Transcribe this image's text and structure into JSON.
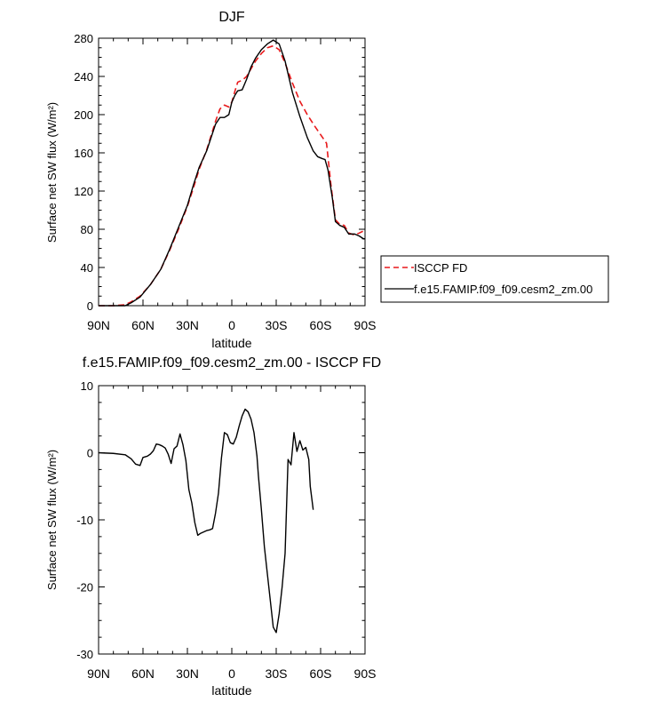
{
  "chart_data": [
    {
      "type": "line",
      "title": "DJF",
      "xlabel": "latitude",
      "ylabel": "Surface net SW flux (W/m²)",
      "ylim": [
        0,
        280
      ],
      "xlim": [
        -90,
        90
      ],
      "x_ticks": [
        {
          "v": -90,
          "label": "90N"
        },
        {
          "v": -60,
          "label": "60N"
        },
        {
          "v": -30,
          "label": "30N"
        },
        {
          "v": 0,
          "label": "0"
        },
        {
          "v": 30,
          "label": "30S"
        },
        {
          "v": 60,
          "label": "60S"
        },
        {
          "v": 90,
          "label": "90S"
        }
      ],
      "y_ticks": [
        0,
        40,
        80,
        120,
        160,
        200,
        240,
        280
      ],
      "legend_position": "right",
      "series": [
        {
          "name": "ISCCP FD",
          "color": "#e8191b",
          "dash": "dashed",
          "points": [
            [
              -90,
              0
            ],
            [
              -80,
              0
            ],
            [
              -72,
              1
            ],
            [
              -68,
              4
            ],
            [
              -62,
              10
            ],
            [
              -55,
              22
            ],
            [
              -48,
              38
            ],
            [
              -42,
              58
            ],
            [
              -36,
              80
            ],
            [
              -30,
              104
            ],
            [
              -26,
              123
            ],
            [
              -22,
              143
            ],
            [
              -17,
              163
            ],
            [
              -14,
              178
            ],
            [
              -11,
              193
            ],
            [
              -8,
              206
            ],
            [
              -5,
              210
            ],
            [
              -2,
              208
            ],
            [
              0,
              213
            ],
            [
              2,
              224
            ],
            [
              4,
              234
            ],
            [
              7,
              236
            ],
            [
              10,
              240
            ],
            [
              13,
              248
            ],
            [
              16,
              256
            ],
            [
              20,
              264
            ],
            [
              24,
              270
            ],
            [
              28,
              272
            ],
            [
              32,
              268
            ],
            [
              36,
              254
            ],
            [
              41,
              233
            ],
            [
              46,
              214
            ],
            [
              51,
              200
            ],
            [
              56,
              188
            ],
            [
              60,
              179
            ],
            [
              64,
              170
            ],
            [
              67,
              126
            ],
            [
              70,
              90
            ],
            [
              73,
              85
            ],
            [
              76,
              84
            ],
            [
              79,
              76
            ],
            [
              83,
              74
            ],
            [
              86,
              76
            ],
            [
              90,
              79
            ]
          ]
        },
        {
          "name": "f.e15.FAMIP.f09_f09.cesm2_zm.00",
          "color": "#000000",
          "dash": "solid",
          "points": [
            [
              -90,
              0
            ],
            [
              -80,
              0
            ],
            [
              -72,
              0
            ],
            [
              -68,
              3
            ],
            [
              -62,
              9
            ],
            [
              -55,
              22
            ],
            [
              -48,
              38
            ],
            [
              -42,
              59
            ],
            [
              -36,
              82
            ],
            [
              -30,
              105
            ],
            [
              -26,
              126
            ],
            [
              -22,
              145
            ],
            [
              -17,
              162
            ],
            [
              -14,
              176
            ],
            [
              -11,
              190
            ],
            [
              -8,
              197
            ],
            [
              -5,
              197
            ],
            [
              -2,
              200
            ],
            [
              0,
              213
            ],
            [
              2,
              220
            ],
            [
              4,
              225
            ],
            [
              7,
              226
            ],
            [
              10,
              237
            ],
            [
              13,
              250
            ],
            [
              16,
              259
            ],
            [
              20,
              268
            ],
            [
              24,
              274
            ],
            [
              28,
              278
            ],
            [
              32,
              274
            ],
            [
              36,
              256
            ],
            [
              41,
              223
            ],
            [
              46,
              198
            ],
            [
              51,
              176
            ],
            [
              55,
              162
            ],
            [
              58,
              156
            ],
            [
              61,
              154
            ],
            [
              63,
              153
            ],
            [
              65,
              142
            ],
            [
              68,
              112
            ],
            [
              70,
              88
            ],
            [
              73,
              84
            ],
            [
              76,
              82
            ],
            [
              79,
              75
            ],
            [
              83,
              75
            ],
            [
              86,
              73
            ],
            [
              89,
              70
            ],
            [
              90,
              70
            ]
          ]
        }
      ]
    },
    {
      "type": "line",
      "title": "f.e15.FAMIP.f09_f09.cesm2_zm.00 - ISCCP FD",
      "xlabel": "latitude",
      "ylabel": "Surface net SW flux (W/m²)",
      "ylim": [
        -30,
        10
      ],
      "xlim": [
        -90,
        90
      ],
      "x_ticks": [
        {
          "v": -90,
          "label": "90N"
        },
        {
          "v": -60,
          "label": "60N"
        },
        {
          "v": -30,
          "label": "30N"
        },
        {
          "v": 0,
          "label": "0"
        },
        {
          "v": 30,
          "label": "30S"
        },
        {
          "v": 60,
          "label": "60S"
        },
        {
          "v": 90,
          "label": "90S"
        }
      ],
      "y_ticks": [
        -30,
        -20,
        -10,
        0,
        10
      ],
      "series": [
        {
          "color": "#000000",
          "dash": "solid",
          "points": [
            [
              -90,
              0
            ],
            [
              -80,
              -0.1
            ],
            [
              -72,
              -0.3
            ],
            [
              -68,
              -0.9
            ],
            [
              -65,
              -1.7
            ],
            [
              -62,
              -1.9
            ],
            [
              -60,
              -0.7
            ],
            [
              -57,
              -0.5
            ],
            [
              -55,
              -0.2
            ],
            [
              -53,
              0.3
            ],
            [
              -51,
              1.3
            ],
            [
              -49,
              1.2
            ],
            [
              -47,
              1.0
            ],
            [
              -45,
              0.7
            ],
            [
              -43,
              -0.2
            ],
            [
              -41,
              -1.6
            ],
            [
              -39,
              0.6
            ],
            [
              -37,
              1.0
            ],
            [
              -35,
              2.8
            ],
            [
              -33,
              1.2
            ],
            [
              -31,
              -1.2
            ],
            [
              -29,
              -5.5
            ],
            [
              -27,
              -7.5
            ],
            [
              -25,
              -10.4
            ],
            [
              -23,
              -12.3
            ],
            [
              -21,
              -12.0
            ],
            [
              -19,
              -11.8
            ],
            [
              -17,
              -11.6
            ],
            [
              -15,
              -11.5
            ],
            [
              -13,
              -11.3
            ],
            [
              -11,
              -9.0
            ],
            [
              -9,
              -6.0
            ],
            [
              -7,
              -0.8
            ],
            [
              -5,
              3.0
            ],
            [
              -3,
              2.7
            ],
            [
              -1,
              1.5
            ],
            [
              1,
              1.3
            ],
            [
              3,
              2.3
            ],
            [
              5,
              4.0
            ],
            [
              7,
              5.5
            ],
            [
              9,
              6.5
            ],
            [
              11,
              6.1
            ],
            [
              13,
              5.0
            ],
            [
              15,
              3.0
            ],
            [
              17,
              -0.5
            ],
            [
              18,
              -3.5
            ],
            [
              20,
              -8.5
            ],
            [
              22,
              -14.0
            ],
            [
              24,
              -18.0
            ],
            [
              26,
              -22.0
            ],
            [
              28,
              -26.0
            ],
            [
              30,
              -26.8
            ],
            [
              32,
              -24.0
            ],
            [
              34,
              -20.0
            ],
            [
              36,
              -15.0
            ],
            [
              38,
              -1.0
            ],
            [
              40,
              -1.8
            ],
            [
              42,
              3.0
            ],
            [
              44,
              0.2
            ],
            [
              46,
              1.8
            ],
            [
              48,
              0.4
            ],
            [
              50,
              0.8
            ],
            [
              52,
              -1.0
            ],
            [
              53,
              -5.0
            ],
            [
              55,
              -8.5
            ]
          ]
        }
      ]
    }
  ],
  "legend": {
    "items": [
      {
        "label": "ISCCP FD",
        "color": "#e8191b",
        "dash": "dashed"
      },
      {
        "label": "f.e15.FAMIP.f09_f09.cesm2_zm.00",
        "color": "#000000",
        "dash": "solid"
      }
    ]
  }
}
